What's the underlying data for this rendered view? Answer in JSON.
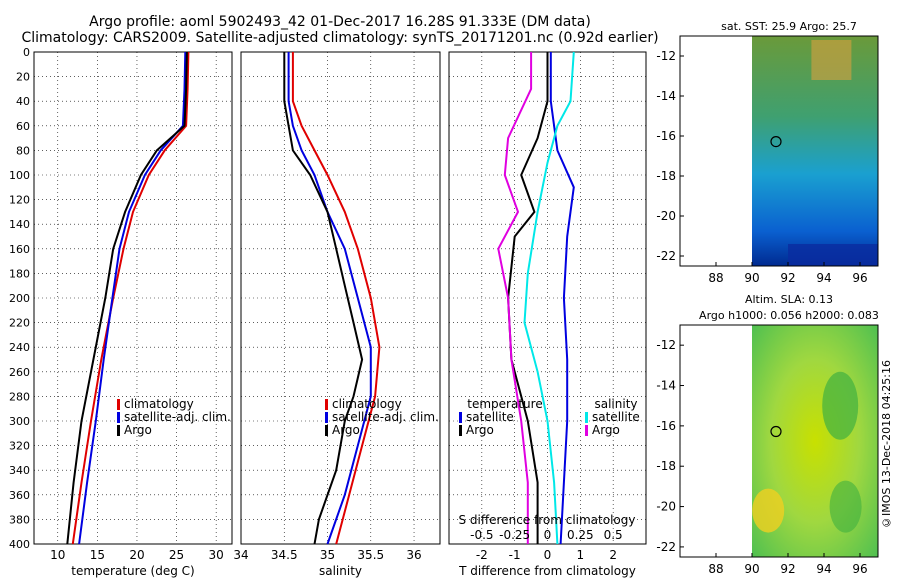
{
  "header": {
    "line1": "Argo profile: aoml 5902493_42 01-Dec-2017 16.28S 91.333E (DM data)",
    "line2": "Climatology: CARS2009. Satellite-adjusted climatology: synTS_20171201.nc (0.92d earlier)"
  },
  "credit": "©IMOS 13-Dec-2018 04:25:16",
  "colors": {
    "climatology": "#e00000",
    "satellite": "#0000e0",
    "argo": "#000000",
    "salinity_satellite": "#00e8e8",
    "salinity_argo": "#e000e0"
  },
  "chart_data": [
    {
      "type": "line",
      "title": "",
      "xlabel": "temperature (deg C)",
      "ylabel": "",
      "xlim": [
        7,
        32
      ],
      "ylim": [
        400,
        0
      ],
      "xticks": [
        "10",
        "15",
        "20",
        "25",
        "30"
      ],
      "yticks": [
        "0",
        "20",
        "40",
        "60",
        "80",
        "100",
        "120",
        "140",
        "160",
        "180",
        "200",
        "220",
        "240",
        "260",
        "280",
        "300",
        "320",
        "340",
        "360",
        "380",
        "400"
      ],
      "legend": [
        "climatology",
        "satellite-adj. clim.",
        "Argo"
      ],
      "legend_position": "lower-right",
      "series": [
        {
          "name": "climatology",
          "color": "#e00000",
          "points": [
            [
              26.5,
              0
            ],
            [
              26.4,
              30
            ],
            [
              26.2,
              60
            ],
            [
              23.5,
              80
            ],
            [
              21.5,
              100
            ],
            [
              19.5,
              130
            ],
            [
              18.3,
              160
            ],
            [
              17.0,
              200
            ],
            [
              15.5,
              250
            ],
            [
              14.2,
              300
            ],
            [
              13.0,
              350
            ],
            [
              11.9,
              400
            ]
          ]
        },
        {
          "name": "satellite-adj. clim.",
          "color": "#0000e0",
          "points": [
            [
              26.1,
              0
            ],
            [
              26.0,
              30
            ],
            [
              25.8,
              60
            ],
            [
              23.0,
              80
            ],
            [
              21.0,
              100
            ],
            [
              19.0,
              130
            ],
            [
              17.8,
              160
            ],
            [
              16.9,
              200
            ],
            [
              15.8,
              250
            ],
            [
              14.8,
              300
            ],
            [
              13.7,
              350
            ],
            [
              12.7,
              400
            ]
          ]
        },
        {
          "name": "Argo",
          "color": "#000000",
          "points": [
            [
              26.3,
              0
            ],
            [
              26.2,
              30
            ],
            [
              26.0,
              60
            ],
            [
              22.5,
              80
            ],
            [
              20.5,
              100
            ],
            [
              18.5,
              130
            ],
            [
              17.0,
              160
            ],
            [
              16.0,
              200
            ],
            [
              14.5,
              250
            ],
            [
              13.0,
              300
            ],
            [
              12.0,
              350
            ],
            [
              11.2,
              400
            ]
          ]
        }
      ]
    },
    {
      "type": "line",
      "title": "",
      "xlabel": "salinity",
      "ylabel": "",
      "xlim": [
        34,
        36.3
      ],
      "ylim": [
        400,
        0
      ],
      "xticks": [
        "34",
        "34.5",
        "35",
        "35.5",
        "36"
      ],
      "yticks": [],
      "legend": [
        "climatology",
        "satellite-adj. clim.",
        "Argo"
      ],
      "legend_position": "lower-right",
      "series": [
        {
          "name": "climatology",
          "color": "#e00000",
          "points": [
            [
              34.6,
              0
            ],
            [
              34.6,
              40
            ],
            [
              34.7,
              60
            ],
            [
              34.85,
              80
            ],
            [
              35.0,
              100
            ],
            [
              35.2,
              130
            ],
            [
              35.35,
              160
            ],
            [
              35.5,
              200
            ],
            [
              35.6,
              240
            ],
            [
              35.55,
              280
            ],
            [
              35.4,
              320
            ],
            [
              35.25,
              360
            ],
            [
              35.1,
              400
            ]
          ]
        },
        {
          "name": "satellite-adj. clim.",
          "color": "#0000e0",
          "points": [
            [
              34.55,
              0
            ],
            [
              34.55,
              40
            ],
            [
              34.6,
              60
            ],
            [
              34.7,
              80
            ],
            [
              34.85,
              100
            ],
            [
              35.0,
              130
            ],
            [
              35.2,
              160
            ],
            [
              35.35,
              200
            ],
            [
              35.5,
              240
            ],
            [
              35.5,
              280
            ],
            [
              35.35,
              320
            ],
            [
              35.2,
              360
            ],
            [
              35.0,
              400
            ]
          ]
        },
        {
          "name": "Argo",
          "color": "#000000",
          "points": [
            [
              34.5,
              0
            ],
            [
              34.5,
              40
            ],
            [
              34.55,
              60
            ],
            [
              34.6,
              80
            ],
            [
              34.8,
              100
            ],
            [
              35.0,
              130
            ],
            [
              35.1,
              160
            ],
            [
              35.2,
              190
            ],
            [
              35.3,
              220
            ],
            [
              35.4,
              250
            ],
            [
              35.3,
              280
            ],
            [
              35.2,
              300
            ],
            [
              35.1,
              340
            ],
            [
              34.9,
              380
            ],
            [
              34.85,
              400
            ]
          ]
        }
      ]
    },
    {
      "type": "line",
      "title": "",
      "xlabel": "T difference from climatology",
      "xlabel_top": "S difference from climatology",
      "xlim": [
        -3,
        3
      ],
      "ylim": [
        400,
        0
      ],
      "xticks": [
        "-2",
        "-1",
        "0",
        "1",
        "2"
      ],
      "xticks_top": [
        "-0.5",
        "-0.25",
        "0",
        "0.25",
        "0.5"
      ],
      "yticks": [],
      "legend": [
        "temperature",
        "satellite",
        "Argo",
        "salinity",
        "satellite",
        "Argo"
      ],
      "legend_position": "lower",
      "series": [
        {
          "name": "temperature satellite",
          "color": "#0000e0",
          "points": [
            [
              0.1,
              0
            ],
            [
              0.1,
              40
            ],
            [
              0.3,
              80
            ],
            [
              0.8,
              110
            ],
            [
              0.6,
              150
            ],
            [
              0.5,
              200
            ],
            [
              0.6,
              250
            ],
            [
              0.6,
              300
            ],
            [
              0.5,
              350
            ],
            [
              0.4,
              400
            ]
          ]
        },
        {
          "name": "temperature Argo",
          "color": "#000000",
          "points": [
            [
              0.0,
              0
            ],
            [
              0.0,
              40
            ],
            [
              -0.3,
              70
            ],
            [
              -0.8,
              100
            ],
            [
              -0.4,
              130
            ],
            [
              -1.0,
              150
            ],
            [
              -1.2,
              200
            ],
            [
              -1.1,
              250
            ],
            [
              -0.6,
              300
            ],
            [
              -0.3,
              350
            ],
            [
              -0.3,
              400
            ]
          ]
        },
        {
          "name": "salinity satellite",
          "color": "#00e8e8",
          "points": [
            [
              0.8,
              0
            ],
            [
              0.7,
              40
            ],
            [
              0.3,
              60
            ],
            [
              0.0,
              90
            ],
            [
              -0.3,
              130
            ],
            [
              -0.6,
              180
            ],
            [
              -0.7,
              220
            ],
            [
              -0.3,
              260
            ],
            [
              0.0,
              300
            ],
            [
              0.2,
              350
            ],
            [
              0.3,
              400
            ]
          ]
        },
        {
          "name": "salinity Argo",
          "color": "#e000e0",
          "points": [
            [
              -0.5,
              0
            ],
            [
              -0.5,
              30
            ],
            [
              -1.2,
              70
            ],
            [
              -1.3,
              100
            ],
            [
              -0.9,
              130
            ],
            [
              -1.5,
              160
            ],
            [
              -1.2,
              200
            ],
            [
              -1.1,
              250
            ],
            [
              -0.8,
              300
            ],
            [
              -0.6,
              350
            ],
            [
              -0.6,
              400
            ]
          ]
        }
      ]
    },
    {
      "type": "heatmap",
      "title": "sat. SST: 25.9 Argo: 25.7",
      "xlabel": "",
      "ylabel": "",
      "xlim": [
        86,
        97
      ],
      "ylim": [
        -22.5,
        -11
      ],
      "xticks": [
        "88",
        "90",
        "92",
        "94",
        "96"
      ],
      "yticks": [
        "-12",
        "-14",
        "-16",
        "-18",
        "-20",
        "-22"
      ],
      "marker": [
        91.333,
        -16.28
      ]
    },
    {
      "type": "heatmap",
      "title": "Altim. SLA: 0.13",
      "subtitle": "Argo h1000: 0.056 h2000: 0.083",
      "xlabel": "",
      "ylabel": "",
      "xlim": [
        86,
        97
      ],
      "ylim": [
        -22.5,
        -11
      ],
      "xticks": [
        "88",
        "90",
        "92",
        "94",
        "96"
      ],
      "yticks": [
        "-12",
        "-14",
        "-16",
        "-18",
        "-20",
        "-22"
      ],
      "marker": [
        91.333,
        -16.28
      ]
    }
  ]
}
